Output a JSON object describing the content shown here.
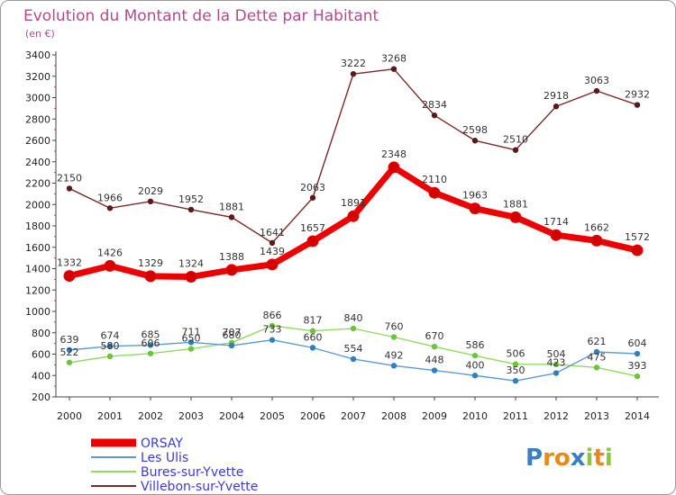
{
  "chart_data": {
    "type": "line",
    "title": "Evolution du Montant de la Dette par Habitant",
    "subtitle": "(en €)",
    "xlabel": "",
    "ylabel": "",
    "categories": [
      "2000",
      "2001",
      "2002",
      "2003",
      "2004",
      "2005",
      "2006",
      "2007",
      "2008",
      "2009",
      "2010",
      "2011",
      "2012",
      "2013",
      "2014"
    ],
    "ylim": [
      200,
      3400
    ],
    "yticks": [
      200,
      400,
      600,
      800,
      1000,
      1200,
      1400,
      1600,
      1800,
      2000,
      2200,
      2400,
      2600,
      2800,
      3000,
      3200,
      3400
    ],
    "grid": false,
    "legend_position": "bottom-left",
    "series": [
      {
        "name": "ORSAY",
        "color": "#ee0000",
        "values": [
          1332,
          1426,
          1329,
          1324,
          1388,
          1439,
          1657,
          1891,
          2348,
          2110,
          1963,
          1881,
          1714,
          1662,
          1572
        ]
      },
      {
        "name": "Les Ulis",
        "color": "#5b9bd5",
        "values": [
          639,
          674,
          685,
          711,
          680,
          733,
          660,
          554,
          492,
          448,
          400,
          350,
          423,
          621,
          604
        ]
      },
      {
        "name": "Bures-sur-Yvette",
        "color": "#8fdc5c",
        "values": [
          522,
          580,
          606,
          650,
          707,
          866,
          817,
          840,
          760,
          670,
          586,
          506,
          504,
          475,
          393
        ]
      },
      {
        "name": "Villebon-sur-Yvette",
        "color": "#7b2a2a",
        "values": [
          2150,
          1966,
          2029,
          1952,
          1881,
          1641,
          2063,
          3222,
          3268,
          2834,
          2598,
          2510,
          2918,
          3063,
          2932
        ]
      }
    ]
  },
  "logo": {
    "text": "Proxiti",
    "letters": [
      {
        "ch": "P",
        "color": "#3a7fc4"
      },
      {
        "ch": "r",
        "color": "#e8891e"
      },
      {
        "ch": "o",
        "color": "#e8891e"
      },
      {
        "ch": "x",
        "color": "#3a7fc4"
      },
      {
        "ch": "i",
        "color": "#8cc63f"
      },
      {
        "ch": "t",
        "color": "#e8891e"
      },
      {
        "ch": "i",
        "color": "#8cc63f"
      }
    ]
  }
}
